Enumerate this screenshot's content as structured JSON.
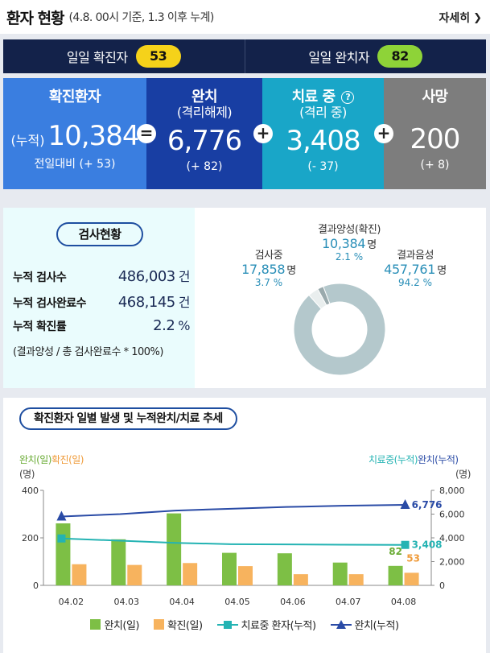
{
  "header": {
    "title": "환자 현황",
    "subtitle": "(4.8. 00시 기준, 1.3 이후 누계)",
    "more_label": "자세히",
    "more_icon": "chevron-right-icon"
  },
  "daily": {
    "confirmed_label": "일일 확진자",
    "confirmed_value": "53",
    "released_label": "일일 완치자",
    "released_value": "82"
  },
  "summary": {
    "confirmed": {
      "label": "확진환자",
      "prefix": "(누적)",
      "value": "10,384",
      "delta": "전일대비 (+ 53)"
    },
    "released": {
      "label": "완치",
      "label2": "(격리해제)",
      "value": "6,776",
      "delta": "(+ 82)"
    },
    "treating": {
      "label": "치료 중",
      "label2": "(격리 중)",
      "value": "3,408",
      "delta": "(- 37)"
    },
    "deaths": {
      "label": "사망",
      "value": "200",
      "delta": "(+ 8)"
    },
    "ops": [
      "=",
      "+",
      "+"
    ],
    "colors": {
      "confirmed": "#3a7ee0",
      "released": "#183ea3",
      "treating": "#19a6c8",
      "deaths": "#7d7d7d"
    }
  },
  "tests": {
    "title": "검사현황",
    "rows": [
      {
        "label": "누적 검사수",
        "value": "486,003",
        "unit": "건"
      },
      {
        "label": "누적 검사완료수",
        "value": "468,145",
        "unit": "건"
      },
      {
        "label": "누적 확진률",
        "value": "2.2",
        "unit": "%"
      }
    ],
    "formula": "(결과양성 / 총 검사완료수 * 100%)",
    "donut": {
      "positive": {
        "label": "결과양성(확진)",
        "value": "10,384",
        "unit": "명",
        "percent": "2.1 %",
        "share": 2.1
      },
      "testing": {
        "label": "검사중",
        "value": "17,858",
        "unit": "명",
        "percent": "3.7 %",
        "share": 3.7
      },
      "negative": {
        "label": "결과음성",
        "value": "457,761",
        "unit": "명",
        "percent": "94.2 %",
        "share": 94.2
      }
    }
  },
  "trend": {
    "title": "확진환자 일별 발생 및 누적완치/치료 추세",
    "left_cap_a": "완치(일)",
    "left_cap_b": "확진(일)",
    "left_unit": "(명)",
    "right_cap_a": "치료중(누적)",
    "right_cap_b": "완치(누적)",
    "right_unit": "(명)",
    "legend": [
      "완치(일)",
      "확진(일)",
      "치료중 환자(누적)",
      "완치(누적)"
    ]
  },
  "chart_data": {
    "type": "bar",
    "categories": [
      "04.02",
      "04.03",
      "04.04",
      "04.05",
      "04.06",
      "04.07",
      "04.08"
    ],
    "series": [
      {
        "name": "완치(일)",
        "axis": "left",
        "kind": "bar",
        "color": "#7dbf45",
        "values": [
          261,
          194,
          303,
          137,
          135,
          96,
          82
        ]
      },
      {
        "name": "확진(일)",
        "axis": "left",
        "kind": "bar",
        "color": "#f7b35e",
        "values": [
          89,
          86,
          94,
          81,
          47,
          47,
          53
        ]
      },
      {
        "name": "치료중 환자(누적)",
        "axis": "right",
        "kind": "line",
        "color": "#24b3b3",
        "values": [
          3950,
          3760,
          3580,
          3470,
          3450,
          3420,
          3408
        ]
      },
      {
        "name": "완치(누적)",
        "axis": "right",
        "kind": "line",
        "color": "#2a4ba6",
        "values": [
          5800,
          6000,
          6300,
          6450,
          6600,
          6700,
          6776
        ]
      }
    ],
    "ylim_left": [
      0,
      400
    ],
    "yticks_left": [
      "0",
      "200",
      "400"
    ],
    "ylim_right": [
      0,
      8000
    ],
    "yticks_right": [
      "0",
      "2,000",
      "4,000",
      "6,000",
      "8,000"
    ],
    "annotations": {
      "treating_last": "3,408",
      "released_last": "6,776",
      "bar_released_last": "82",
      "bar_confirmed_last": "53"
    }
  }
}
